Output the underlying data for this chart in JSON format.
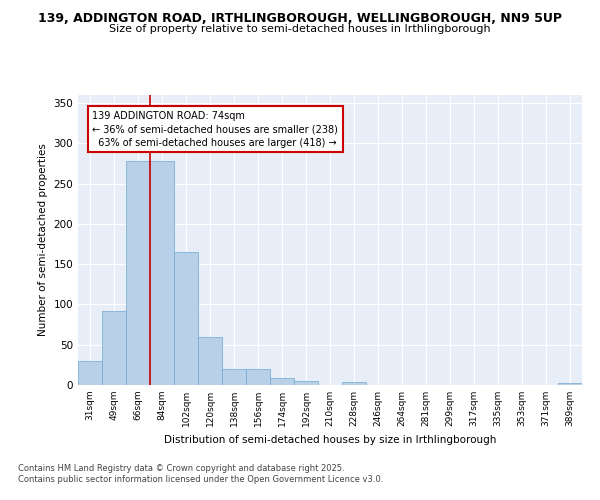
{
  "title_line1": "139, ADDINGTON ROAD, IRTHLINGBOROUGH, WELLINGBOROUGH, NN9 5UP",
  "title_line2": "Size of property relative to semi-detached houses in Irthlingborough",
  "xlabel": "Distribution of semi-detached houses by size in Irthlingborough",
  "ylabel": "Number of semi-detached properties",
  "categories": [
    "31sqm",
    "49sqm",
    "66sqm",
    "84sqm",
    "102sqm",
    "120sqm",
    "138sqm",
    "156sqm",
    "174sqm",
    "192sqm",
    "210sqm",
    "228sqm",
    "246sqm",
    "264sqm",
    "281sqm",
    "299sqm",
    "317sqm",
    "335sqm",
    "353sqm",
    "371sqm",
    "389sqm"
  ],
  "values": [
    30,
    92,
    278,
    278,
    165,
    60,
    20,
    20,
    9,
    5,
    0,
    4,
    0,
    0,
    0,
    0,
    0,
    0,
    0,
    0,
    3
  ],
  "bar_color": "#b8d0e8",
  "bar_edge_color": "#6fa8d0",
  "background_color": "#e8eef8",
  "grid_color": "#ffffff",
  "property_label": "139 ADDINGTON ROAD: 74sqm",
  "pct_smaller": 36,
  "count_smaller": 238,
  "pct_larger": 63,
  "count_larger": 418,
  "vline_x_index": 2.5,
  "annotation_box_color": "#ffffff",
  "annotation_box_edge": "#cc0000",
  "vline_color": "#cc0000",
  "footnote1": "Contains HM Land Registry data © Crown copyright and database right 2025.",
  "footnote2": "Contains public sector information licensed under the Open Government Licence v3.0.",
  "ylim": [
    0,
    360
  ],
  "yticks": [
    0,
    50,
    100,
    150,
    200,
    250,
    300,
    350
  ]
}
